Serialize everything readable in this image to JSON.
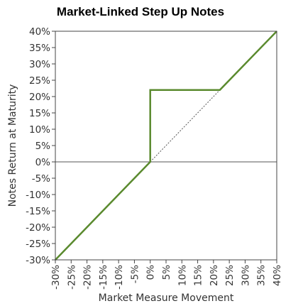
{
  "chart_data": {
    "type": "line",
    "title": "Market-Linked Step Up Notes",
    "xlabel": "Market Measure Movement",
    "ylabel": "Notes Return at Maturity",
    "xlim": [
      -30,
      40
    ],
    "ylim": [
      -30,
      40
    ],
    "x_ticks": [
      "-30%",
      "-25%",
      "-20%",
      "-15%",
      "-10%",
      "-5%",
      "0%",
      "5%",
      "10%",
      "15%",
      "20%",
      "25%",
      "30%",
      "35%",
      "40%"
    ],
    "y_ticks": [
      "40%",
      "35%",
      "30%",
      "25%",
      "20%",
      "15%",
      "10%",
      "5%",
      "0%",
      "-5%",
      "-10%",
      "-15%",
      "-20%",
      "-25%",
      "-30%"
    ],
    "series": [
      {
        "style": "solid",
        "color": "#5a8a2e",
        "points": [
          [
            -30,
            -30
          ],
          [
            0,
            0
          ],
          [
            0,
            22
          ],
          [
            22,
            22
          ],
          [
            40,
            40
          ]
        ]
      },
      {
        "style": "dotted",
        "color": "#555555",
        "points": [
          [
            0,
            0
          ],
          [
            22,
            22
          ]
        ]
      }
    ],
    "reference_line_y": 0,
    "grid": false,
    "legend": "none"
  }
}
